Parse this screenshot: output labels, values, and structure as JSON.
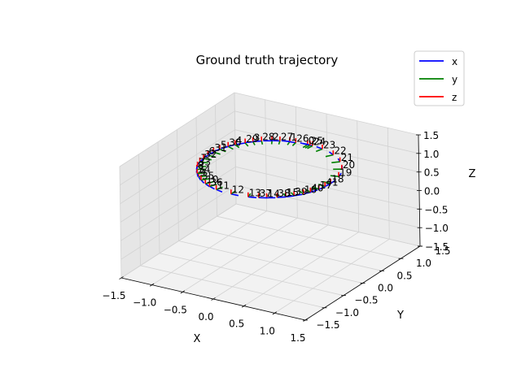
{
  "chart_data": {
    "type": "scatter",
    "projection": "3d",
    "title": "Ground truth trajectory",
    "xlabel": "X",
    "ylabel": "Y",
    "zlabel": "Z",
    "xlim": [
      -1.5,
      1.5
    ],
    "ylim": [
      -1.5,
      1.5
    ],
    "zlim": [
      -1.5,
      1.5
    ],
    "x_ticks": [
      "−1.5",
      "−1.0",
      "−0.5",
      "0.0",
      "0.5",
      "1.0",
      "1.5"
    ],
    "y_ticks": [
      "−1.5",
      "−1.0",
      "−0.5",
      "0.0",
      "0.5",
      "1.0",
      "1.5"
    ],
    "z_ticks": [
      "−1.5",
      "−1.0",
      "−0.5",
      "0.0",
      "0.5",
      "1.0",
      "1.5"
    ],
    "grid": true,
    "legend": {
      "position": "top-right",
      "entries": [
        {
          "name": "x",
          "color": "#0000ff"
        },
        {
          "name": "y",
          "color": "#008000"
        },
        {
          "name": "z",
          "color": "#ff0000"
        }
      ]
    },
    "series": [
      {
        "name": "x",
        "color": "#0000ff"
      },
      {
        "name": "y",
        "color": "#008000"
      },
      {
        "name": "z",
        "color": "#ff0000"
      }
    ],
    "frame_axis_length": 0.12,
    "poses": [
      {
        "label": "0",
        "x": 0.0,
        "y": 1.0,
        "z": 1.0
      },
      {
        "label": "1",
        "x": -0.27,
        "y": 0.97,
        "z": 1.0
      },
      {
        "label": "2",
        "x": -0.5,
        "y": 0.87,
        "z": 1.0
      },
      {
        "label": "3",
        "x": -0.71,
        "y": 0.71,
        "z": 1.0
      },
      {
        "label": "4",
        "x": -0.87,
        "y": 0.5,
        "z": 1.0
      },
      {
        "label": "5",
        "x": -0.97,
        "y": 0.26,
        "z": 1.0
      },
      {
        "label": "6",
        "x": -1.0,
        "y": 0.0,
        "z": 1.0
      },
      {
        "label": "7",
        "x": -0.97,
        "y": -0.26,
        "z": 1.0
      },
      {
        "label": "8",
        "x": -0.87,
        "y": -0.5,
        "z": 1.0
      },
      {
        "label": "9",
        "x": -0.71,
        "y": -0.71,
        "z": 1.0
      },
      {
        "label": "10",
        "x": -0.5,
        "y": -0.87,
        "z": 1.0
      },
      {
        "label": "11",
        "x": -0.26,
        "y": -0.97,
        "z": 1.0
      },
      {
        "label": "12",
        "x": 0.0,
        "y": -1.0,
        "z": 1.0
      },
      {
        "label": "13",
        "x": 0.26,
        "y": -0.97,
        "z": 1.0
      },
      {
        "label": "14",
        "x": 0.5,
        "y": -0.87,
        "z": 1.0
      },
      {
        "label": "15",
        "x": 0.71,
        "y": -0.71,
        "z": 1.0
      },
      {
        "label": "16",
        "x": 0.87,
        "y": -0.5,
        "z": 1.0
      },
      {
        "label": "17",
        "x": 0.97,
        "y": -0.26,
        "z": 1.0
      },
      {
        "label": "18",
        "x": 1.0,
        "y": 0.0,
        "z": 1.0
      },
      {
        "label": "19",
        "x": 0.97,
        "y": 0.26,
        "z": 1.0
      },
      {
        "label": "20",
        "x": 0.87,
        "y": 0.5,
        "z": 1.0
      },
      {
        "label": "21",
        "x": 0.71,
        "y": 0.71,
        "z": 1.0
      },
      {
        "label": "22",
        "x": 0.5,
        "y": 0.87,
        "z": 1.0
      },
      {
        "label": "23",
        "x": 0.26,
        "y": 0.97,
        "z": 1.0
      },
      {
        "label": "24",
        "x": 0.08,
        "y": 1.0,
        "z": 1.0
      },
      {
        "label": "25",
        "x": 0.04,
        "y": 1.0,
        "z": 1.0
      },
      {
        "label": "26",
        "x": -0.18,
        "y": 0.98,
        "z": 1.0
      },
      {
        "label": "27",
        "x": -0.4,
        "y": 0.92,
        "z": 1.0
      },
      {
        "label": "28",
        "x": -0.62,
        "y": 0.79,
        "z": 1.0
      },
      {
        "label": "29",
        "x": -0.78,
        "y": 0.62,
        "z": 1.0
      },
      {
        "label": "30",
        "x": -0.92,
        "y": 0.4,
        "z": 1.0
      },
      {
        "label": "31",
        "x": -0.99,
        "y": 0.13,
        "z": 1.0
      },
      {
        "label": "32",
        "x": -0.99,
        "y": -0.13,
        "z": 1.0
      },
      {
        "label": "33",
        "x": -0.92,
        "y": -0.4,
        "z": 1.0
      },
      {
        "label": "34",
        "x": -0.79,
        "y": -0.62,
        "z": 1.0
      },
      {
        "label": "35",
        "x": -0.62,
        "y": -0.79,
        "z": 1.0
      },
      {
        "label": "36",
        "x": -0.4,
        "y": -0.92,
        "z": 1.0
      },
      {
        "label": "37",
        "x": 0.4,
        "y": -0.92,
        "z": 1.0
      },
      {
        "label": "38",
        "x": 0.62,
        "y": -0.79,
        "z": 1.0
      },
      {
        "label": "39",
        "x": 0.79,
        "y": -0.62,
        "z": 1.0
      },
      {
        "label": "40",
        "x": 0.92,
        "y": -0.4,
        "z": 1.0
      },
      {
        "label": "41",
        "x": 0.99,
        "y": -0.13,
        "z": 1.0
      }
    ]
  }
}
